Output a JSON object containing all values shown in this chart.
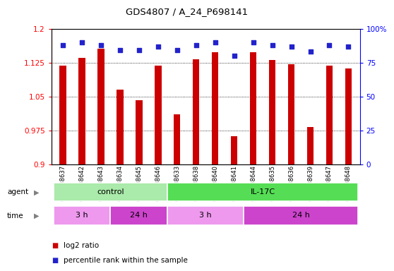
{
  "title": "GDS4807 / A_24_P698141",
  "samples": [
    "GSM808637",
    "GSM808642",
    "GSM808643",
    "GSM808634",
    "GSM808645",
    "GSM808646",
    "GSM808633",
    "GSM808638",
    "GSM808640",
    "GSM808641",
    "GSM808644",
    "GSM808635",
    "GSM808636",
    "GSM808639",
    "GSM808647",
    "GSM808648"
  ],
  "log2_ratio": [
    1.118,
    1.135,
    1.155,
    1.065,
    1.042,
    1.118,
    1.01,
    1.132,
    1.148,
    0.962,
    1.148,
    1.13,
    1.122,
    0.982,
    1.118,
    1.112
  ],
  "percentile": [
    88,
    90,
    88,
    84,
    84,
    87,
    84,
    88,
    90,
    80,
    90,
    88,
    87,
    83,
    88,
    87
  ],
  "bar_color": "#cc0000",
  "dot_color": "#2222cc",
  "ylim": [
    0.9,
    1.2
  ],
  "yticks": [
    0.9,
    0.975,
    1.05,
    1.125,
    1.2
  ],
  "ytick_labels": [
    "0.9",
    "0.975",
    "1.05",
    "1.125",
    "1.2"
  ],
  "right_yticks": [
    0,
    25,
    50,
    75,
    100
  ],
  "right_ytick_labels": [
    "0",
    "25",
    "50",
    "75",
    "100%"
  ],
  "agent_groups": [
    {
      "label": "control",
      "start": 0,
      "end": 6,
      "color": "#aaeaaa"
    },
    {
      "label": "IL-17C",
      "start": 6,
      "end": 16,
      "color": "#55dd55"
    }
  ],
  "time_groups": [
    {
      "label": "3 h",
      "start": 0,
      "end": 3,
      "color": "#ee99ee"
    },
    {
      "label": "24 h",
      "start": 3,
      "end": 6,
      "color": "#cc44cc"
    },
    {
      "label": "3 h",
      "start": 6,
      "end": 10,
      "color": "#ee99ee"
    },
    {
      "label": "24 h",
      "start": 10,
      "end": 16,
      "color": "#cc44cc"
    }
  ],
  "legend_items": [
    {
      "label": "log2 ratio",
      "color": "#cc0000"
    },
    {
      "label": "percentile rank within the sample",
      "color": "#2222cc"
    }
  ],
  "bar_width": 0.35,
  "figsize": [
    5.71,
    3.84
  ],
  "dpi": 100
}
